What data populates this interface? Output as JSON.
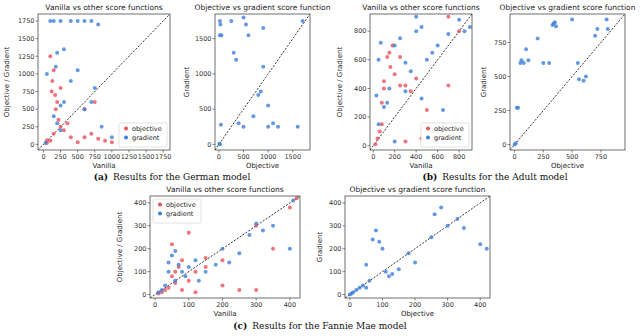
{
  "chart_data": [
    {
      "type": "scatter",
      "title": "Vanilla vs other score functions",
      "x_label": "Vanilla",
      "y_label": "Objective / Gradient",
      "xlim": [
        -80,
        1850
      ],
      "ylim": [
        -80,
        1850
      ],
      "xticks": [
        0,
        250,
        500,
        750,
        1000,
        1250,
        1500,
        1750
      ],
      "yticks": [
        0,
        250,
        500,
        750,
        1000,
        1250,
        1500,
        1750
      ],
      "legend": "lower right",
      "marker": "circle",
      "series": [
        {
          "name": "objective",
          "color": "#e8505b",
          "x": [
            50,
            100,
            150,
            130,
            170,
            200,
            180,
            220,
            250,
            300,
            150,
            50,
            800,
            700,
            600,
            900,
            750,
            400,
            350,
            1000,
            100,
            120,
            600,
            500,
            250
          ],
          "values": [
            20,
            50,
            1050,
            900,
            700,
            600,
            500,
            350,
            250,
            200,
            150,
            60,
            80,
            150,
            100,
            50,
            600,
            100,
            300,
            30,
            1250,
            750,
            500,
            30,
            800
          ]
        },
        {
          "name": "gradient",
          "color": "#3d7fd9",
          "x": [
            30,
            100,
            150,
            200,
            180,
            250,
            300,
            150,
            200,
            250,
            300,
            400,
            500,
            600,
            700,
            800,
            750,
            700,
            600,
            500,
            400,
            250,
            850,
            1000,
            50
          ],
          "values": [
            20,
            1750,
            1750,
            1300,
            1100,
            1750,
            1350,
            400,
            300,
            200,
            600,
            1750,
            1750,
            1750,
            1750,
            1700,
            800,
            600,
            500,
            1050,
            900,
            550,
            250,
            100,
            1000
          ]
        }
      ]
    },
    {
      "type": "scatter",
      "title": "Objective vs gradient score function",
      "x_label": "Objective",
      "y_label": "Gradient",
      "xlim": [
        -80,
        1850
      ],
      "ylim": [
        -80,
        1850
      ],
      "xticks": [
        0,
        500,
        1000,
        1500
      ],
      "yticks": [
        0,
        500,
        1000,
        1500
      ],
      "marker": "circle",
      "series": [
        {
          "name": "gradient",
          "color": "#3d7fd9",
          "x": [
            20,
            30,
            20,
            40,
            20,
            10,
            500,
            550,
            900,
            250,
            300,
            400,
            600,
            700,
            800,
            900,
            850,
            1100,
            1000,
            1200,
            1000,
            1600,
            1700,
            350,
            500,
            50
          ],
          "values": [
            1750,
            1700,
            1550,
            280,
            0,
            10,
            1800,
            1700,
            1650,
            1750,
            1300,
            300,
            1550,
            400,
            700,
            1100,
            750,
            300,
            250,
            250,
            550,
            250,
            1750,
            1200,
            250,
            1550
          ]
        }
      ]
    },
    {
      "type": "scatter",
      "title": "Vanilla vs other score functions",
      "x_label": "Vanilla",
      "y_label": "Objective / Gradient",
      "xlim": [
        -30,
        920
      ],
      "ylim": [
        -30,
        920
      ],
      "xticks": [
        0,
        200,
        400,
        600,
        800
      ],
      "yticks": [
        0,
        200,
        400,
        600,
        800
      ],
      "legend": "lower right",
      "marker": "circle",
      "series": [
        {
          "name": "objective",
          "color": "#e8505b",
          "x": [
            20,
            40,
            60,
            80,
            100,
            130,
            150,
            160,
            180,
            200,
            250,
            300,
            350,
            400,
            500,
            550,
            600,
            450,
            700,
            800,
            100,
            80,
            250,
            300,
            700
          ],
          "values": [
            10,
            50,
            100,
            150,
            450,
            620,
            650,
            550,
            700,
            500,
            420,
            420,
            380,
            470,
            250,
            100,
            50,
            50,
            900,
            800,
            400,
            300,
            620,
            30,
            420
          ]
        },
        {
          "name": "gradient",
          "color": "#3d7fd9",
          "x": [
            30,
            50,
            70,
            100,
            130,
            150,
            200,
            250,
            300,
            350,
            400,
            450,
            500,
            550,
            600,
            700,
            800,
            850,
            650,
            450,
            200,
            300,
            50,
            400,
            900
          ],
          "values": [
            350,
            600,
            720,
            270,
            300,
            400,
            700,
            750,
            580,
            520,
            800,
            830,
            600,
            650,
            700,
            780,
            880,
            800,
            250,
            330,
            30,
            380,
            150,
            900,
            830
          ]
        }
      ]
    },
    {
      "type": "scatter",
      "title": "Objective vs gradient score function",
      "x_label": "Objective",
      "y_label": "Gradient",
      "xlim": [
        -40,
        960
      ],
      "ylim": [
        -40,
        960
      ],
      "xticks": [
        0,
        250,
        500,
        750
      ],
      "yticks": [
        0,
        250,
        500,
        750
      ],
      "marker": "circle",
      "series": [
        {
          "name": "gradient",
          "color": "#3d7fd9",
          "x": [
            0,
            10,
            20,
            30,
            50,
            60,
            80,
            100,
            120,
            200,
            250,
            300,
            330,
            350,
            360,
            340,
            550,
            560,
            600,
            620,
            700,
            720,
            800,
            810,
            500
          ],
          "values": [
            0,
            10,
            270,
            270,
            600,
            620,
            600,
            700,
            620,
            780,
            600,
            600,
            880,
            900,
            870,
            890,
            600,
            480,
            470,
            500,
            800,
            850,
            920,
            850,
            920
          ]
        }
      ]
    },
    {
      "type": "scatter",
      "title": "Vanilla vs other score functions",
      "x_label": "Vanilla",
      "y_label": "Objective / Gradient",
      "xlim": [
        -15,
        430
      ],
      "ylim": [
        -15,
        430
      ],
      "xticks": [
        0,
        100,
        200,
        300,
        400
      ],
      "yticks": [
        0,
        100,
        200,
        300,
        400
      ],
      "legend": "upper left",
      "marker": "circle",
      "series": [
        {
          "name": "objective",
          "color": "#e8505b",
          "x": [
            10,
            20,
            30,
            40,
            50,
            60,
            70,
            80,
            60,
            100,
            120,
            150,
            200,
            200,
            250,
            300,
            300,
            350,
            400,
            420,
            50,
            80,
            120,
            150,
            100
          ],
          "values": [
            5,
            10,
            20,
            30,
            80,
            100,
            120,
            150,
            50,
            60,
            100,
            120,
            150,
            40,
            20,
            20,
            300,
            200,
            380,
            420,
            220,
            20,
            10,
            160,
            270
          ]
        },
        {
          "name": "gradient",
          "color": "#3d7fd9",
          "x": [
            10,
            20,
            30,
            40,
            50,
            60,
            70,
            80,
            100,
            120,
            150,
            180,
            200,
            250,
            300,
            320,
            350,
            400,
            410,
            60,
            90,
            40,
            130,
            220,
            280
          ],
          "values": [
            10,
            20,
            40,
            140,
            170,
            190,
            130,
            100,
            120,
            150,
            100,
            130,
            200,
            180,
            310,
            280,
            300,
            200,
            410,
            60,
            80,
            100,
            60,
            140,
            260
          ]
        }
      ]
    },
    {
      "type": "scatter",
      "title": "Objective vs gradient score function",
      "x_label": "Objective",
      "y_label": "Gradient",
      "xlim": [
        -15,
        430
      ],
      "ylim": [
        -15,
        430
      ],
      "xticks": [
        0,
        100,
        200,
        300,
        400
      ],
      "yticks": [
        0,
        100,
        200,
        300,
        400
      ],
      "marker": "circle",
      "series": [
        {
          "name": "gradient",
          "color": "#3d7fd9",
          "x": [
            0,
            5,
            10,
            20,
            30,
            40,
            50,
            60,
            70,
            80,
            90,
            100,
            110,
            120,
            130,
            150,
            180,
            200,
            250,
            260,
            280,
            300,
            330,
            350,
            400,
            420,
            50
          ],
          "values": [
            0,
            5,
            10,
            20,
            30,
            40,
            30,
            60,
            240,
            280,
            230,
            200,
            100,
            80,
            90,
            110,
            180,
            140,
            250,
            350,
            380,
            300,
            330,
            290,
            220,
            200,
            130
          ]
        }
      ]
    }
  ],
  "captions": [
    {
      "label": "(a)",
      "text": "Results for the German model"
    },
    {
      "label": "(b)",
      "text": "Results for the Adult model"
    },
    {
      "label": "(c)",
      "text": "Results for the Fannie Mae model"
    }
  ]
}
